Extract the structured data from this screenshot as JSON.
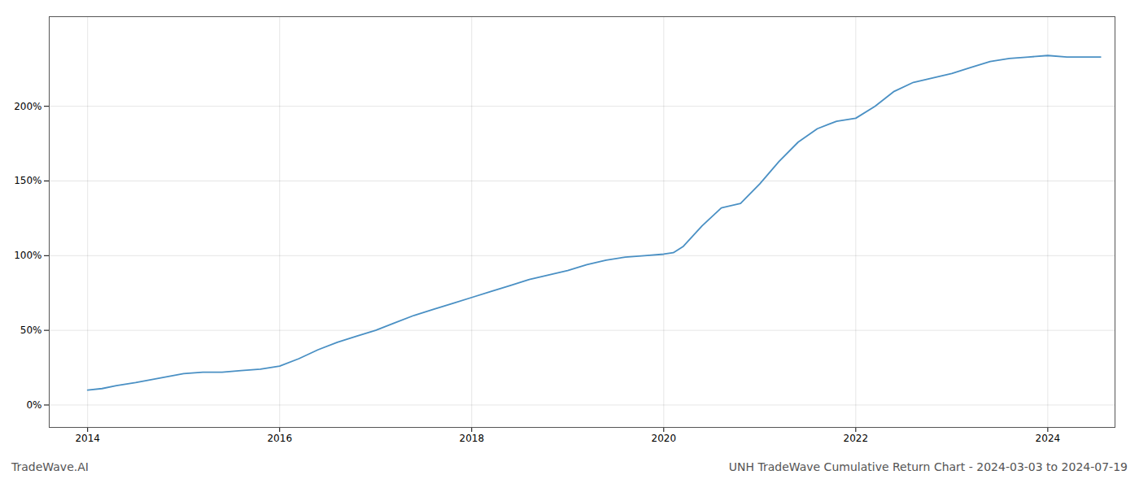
{
  "chart_data": {
    "type": "line",
    "title": "UNH TradeWave Cumulative Return Chart - 2024-03-03 to 2024-07-19",
    "annotations": [
      "TradeWave.AI"
    ],
    "x": [
      2014.0,
      2014.15,
      2014.3,
      2014.5,
      2014.75,
      2015.0,
      2015.2,
      2015.4,
      2015.6,
      2015.8,
      2016.0,
      2016.2,
      2016.4,
      2016.6,
      2016.8,
      2017.0,
      2017.2,
      2017.4,
      2017.6,
      2017.8,
      2018.0,
      2018.2,
      2018.4,
      2018.6,
      2018.8,
      2019.0,
      2019.2,
      2019.4,
      2019.6,
      2019.8,
      2020.0,
      2020.1,
      2020.2,
      2020.4,
      2020.6,
      2020.8,
      2021.0,
      2021.2,
      2021.4,
      2021.6,
      2021.8,
      2022.0,
      2022.2,
      2022.4,
      2022.6,
      2022.8,
      2023.0,
      2023.2,
      2023.4,
      2023.6,
      2023.8,
      2024.0,
      2024.2,
      2024.55
    ],
    "values": [
      10,
      11,
      13,
      15,
      18,
      21,
      22,
      22,
      23,
      24,
      26,
      31,
      37,
      42,
      46,
      50,
      55,
      60,
      64,
      68,
      72,
      76,
      80,
      84,
      87,
      90,
      94,
      97,
      99,
      100,
      101,
      102,
      106,
      120,
      132,
      135,
      148,
      163,
      176,
      185,
      190,
      192,
      200,
      210,
      216,
      219,
      222,
      226,
      230,
      232,
      233,
      234,
      233,
      233
    ],
    "color": "#4a90c4",
    "xlim": [
      2013.6,
      2024.7
    ],
    "xticks": [
      2014,
      2016,
      2018,
      2020,
      2022,
      2024
    ],
    "ylim": [
      -15,
      260
    ],
    "yticks": [
      {
        "value": 0,
        "label": "0%"
      },
      {
        "value": 50,
        "label": "50%"
      },
      {
        "value": 100,
        "label": "100%"
      },
      {
        "value": 150,
        "label": "150%"
      },
      {
        "value": 200,
        "label": "200%"
      }
    ],
    "grid": true
  }
}
